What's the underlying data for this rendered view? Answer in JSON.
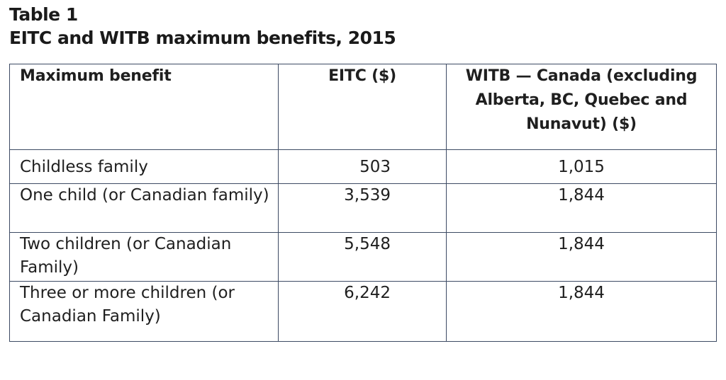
{
  "heading": {
    "table_number": "Table 1",
    "title": "EITC and WITB maximum benefits, 2015"
  },
  "table": {
    "headers": {
      "label": "Maximum benefit",
      "eitc": "EITC ($)",
      "witb": "WITB — Canada (excluding Alberta, BC, Quebec and Nunavut) ($)"
    },
    "rows": [
      {
        "label": "Childless family",
        "eitc": "503",
        "witb": "1,015"
      },
      {
        "label": "One child (or Canadian family)",
        "eitc": "3,539",
        "witb": "1,844"
      },
      {
        "label": "Two children (or Canadian Family)",
        "eitc": "5,548",
        "witb": "1,844"
      },
      {
        "label": "Three or more children (or Canadian Family)",
        "eitc": "6,242",
        "witb": "1,844"
      }
    ]
  },
  "colors": {
    "border": "#3c4a63",
    "text": "#1a1a1a"
  }
}
